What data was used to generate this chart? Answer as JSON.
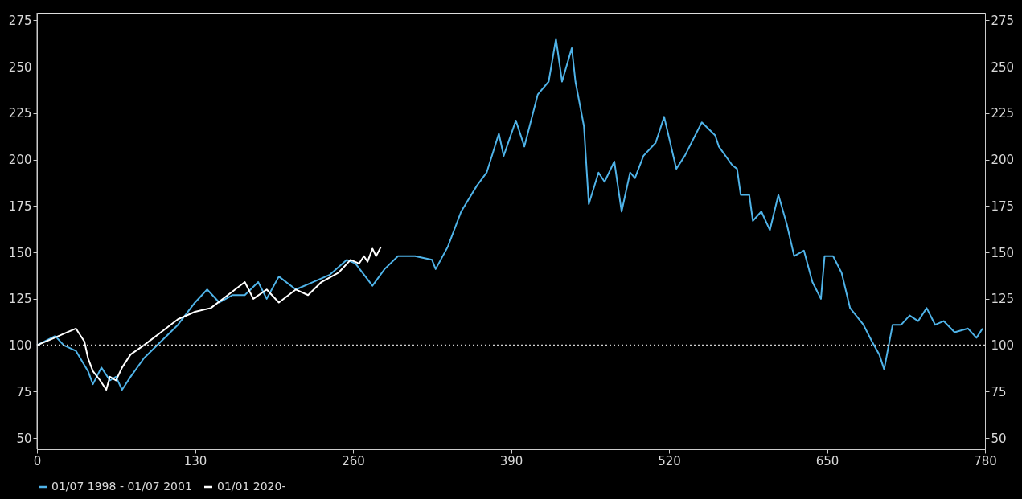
{
  "chart_data": {
    "type": "line",
    "x": [
      0,
      15,
      22,
      32,
      42,
      46,
      53,
      60,
      65,
      70,
      77,
      88,
      102,
      116,
      130,
      140,
      150,
      161,
      171,
      182,
      189,
      199,
      213,
      227,
      241,
      255,
      262,
      276,
      286,
      297,
      311,
      325,
      328,
      338,
      349,
      362,
      370,
      380,
      384,
      394,
      401,
      412,
      421,
      427,
      432,
      440,
      443,
      450,
      454,
      462,
      467,
      475,
      481,
      488,
      492,
      499,
      509,
      516,
      526,
      533,
      547,
      558,
      561,
      572,
      576,
      579,
      586,
      589,
      596,
      603,
      610,
      617,
      623,
      631,
      638,
      645,
      648,
      655,
      662,
      669,
      680,
      687,
      693,
      697,
      704,
      711,
      718,
      725,
      732,
      739,
      746,
      755,
      766,
      773,
      778
    ],
    "series": [
      {
        "name": "01/07 1998 - 01/07 2001",
        "color": "#4fb3e8",
        "values": [
          100,
          105,
          100,
          97,
          86,
          79,
          88,
          81,
          83,
          76,
          83,
          93,
          102,
          111,
          123,
          130,
          123,
          127,
          127,
          134,
          125,
          137,
          130,
          134,
          138,
          146,
          144,
          132,
          141,
          148,
          148,
          146,
          141,
          153,
          172,
          186,
          193,
          214,
          202,
          221,
          207,
          235,
          242,
          265,
          242,
          260,
          242,
          218,
          176,
          193,
          188,
          199,
          172,
          193,
          190,
          202,
          209,
          223,
          195,
          202,
          220,
          213,
          207,
          197,
          195,
          181,
          181,
          167,
          172,
          162,
          181,
          165,
          148,
          151,
          134,
          125,
          148,
          148,
          139,
          120,
          111,
          102,
          95,
          87,
          111,
          111,
          116,
          113,
          120,
          111,
          113,
          107,
          109,
          104,
          109
        ]
      },
      {
        "name": "01/01 2020-",
        "color": "#ffffff",
        "x": [
          0,
          11,
          25,
          32,
          39,
          42,
          46,
          52,
          57,
          60,
          65,
          70,
          77,
          88,
          102,
          116,
          130,
          143,
          157,
          171,
          178,
          189,
          199,
          213,
          223,
          234,
          248,
          258,
          265,
          269,
          272,
          276,
          279,
          283
        ],
        "values": [
          100,
          103,
          107,
          109,
          102,
          93,
          86,
          81,
          76,
          83,
          81,
          88,
          95,
          100,
          107,
          114,
          118,
          120,
          127,
          134,
          125,
          130,
          123,
          130,
          127,
          134,
          139,
          146,
          144,
          148,
          145,
          152,
          148,
          153
        ]
      }
    ],
    "xlim": [
      0,
      780
    ],
    "xticks": [
      0,
      130,
      260,
      390,
      520,
      650,
      780
    ],
    "ylim": [
      44,
      279
    ],
    "yticks": [
      50,
      75,
      100,
      125,
      150,
      175,
      200,
      225,
      250,
      275
    ],
    "y2lim": [
      44,
      279
    ],
    "y2ticks": [
      50,
      75,
      100,
      125,
      150,
      175,
      200,
      225,
      250,
      275
    ],
    "ref_lines": [
      {
        "axis": "y",
        "value": 100,
        "color": "#d0d0d0",
        "line_style": "dotted"
      }
    ],
    "legend": "bottom",
    "grid": false,
    "line_style": "solid",
    "marker": "none"
  }
}
